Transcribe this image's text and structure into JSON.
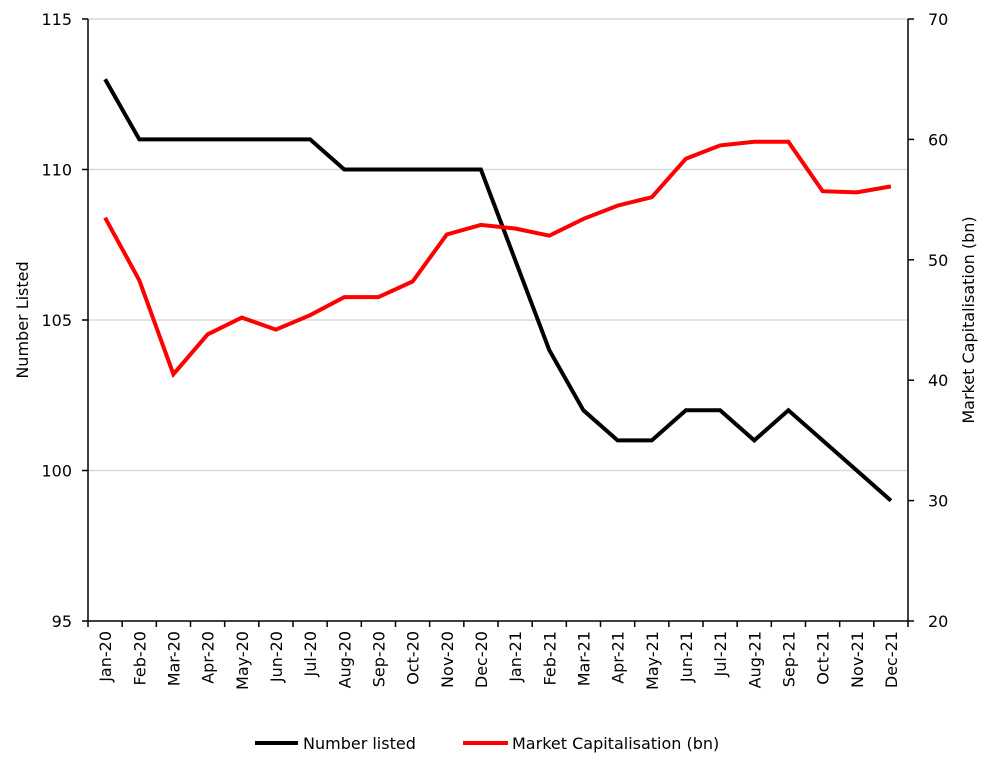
{
  "chart_data": {
    "type": "line",
    "categories": [
      "Jan-20",
      "Feb-20",
      "Mar-20",
      "Apr-20",
      "May-20",
      "Jun-20",
      "Jul-20",
      "Aug-20",
      "Sep-20",
      "Oct-20",
      "Nov-20",
      "Dec-20",
      "Jan-21",
      "Feb-21",
      "Mar-21",
      "Apr-21",
      "May-21",
      "Jun-21",
      "Jul-21",
      "Aug-21",
      "Sep-21",
      "Oct-21",
      "Nov-21",
      "Dec-21"
    ],
    "series": [
      {
        "name": "Number listed",
        "axis": "left",
        "color": "#000000",
        "values": [
          113,
          111,
          111,
          111,
          111,
          111,
          111,
          110,
          110,
          110,
          110,
          110,
          107,
          104,
          102,
          101,
          101,
          102,
          102,
          101,
          102,
          101,
          100,
          99
        ]
      },
      {
        "name": "Market Capitalisation (bn)",
        "axis": "right",
        "color": "#ff0000",
        "values": [
          53.5,
          48.3,
          40.5,
          43.8,
          45.2,
          44.2,
          45.4,
          46.9,
          46.9,
          48.2,
          52.1,
          52.9,
          52.6,
          52.0,
          53.4,
          54.5,
          55.2,
          58.4,
          59.5,
          59.8,
          59.8,
          55.7,
          55.6,
          56.1
        ]
      }
    ],
    "ylabel": "Number listed",
    "ylabel_display": "Number Listed",
    "y2label": "Market Capitalisation (bn)",
    "ylim": [
      95,
      115
    ],
    "yticks": [
      95,
      100,
      105,
      110,
      115
    ],
    "y2lim": [
      20,
      70
    ],
    "y2ticks": [
      20,
      30,
      40,
      50,
      60,
      70
    ],
    "grid": true,
    "legend_position": "bottom"
  }
}
